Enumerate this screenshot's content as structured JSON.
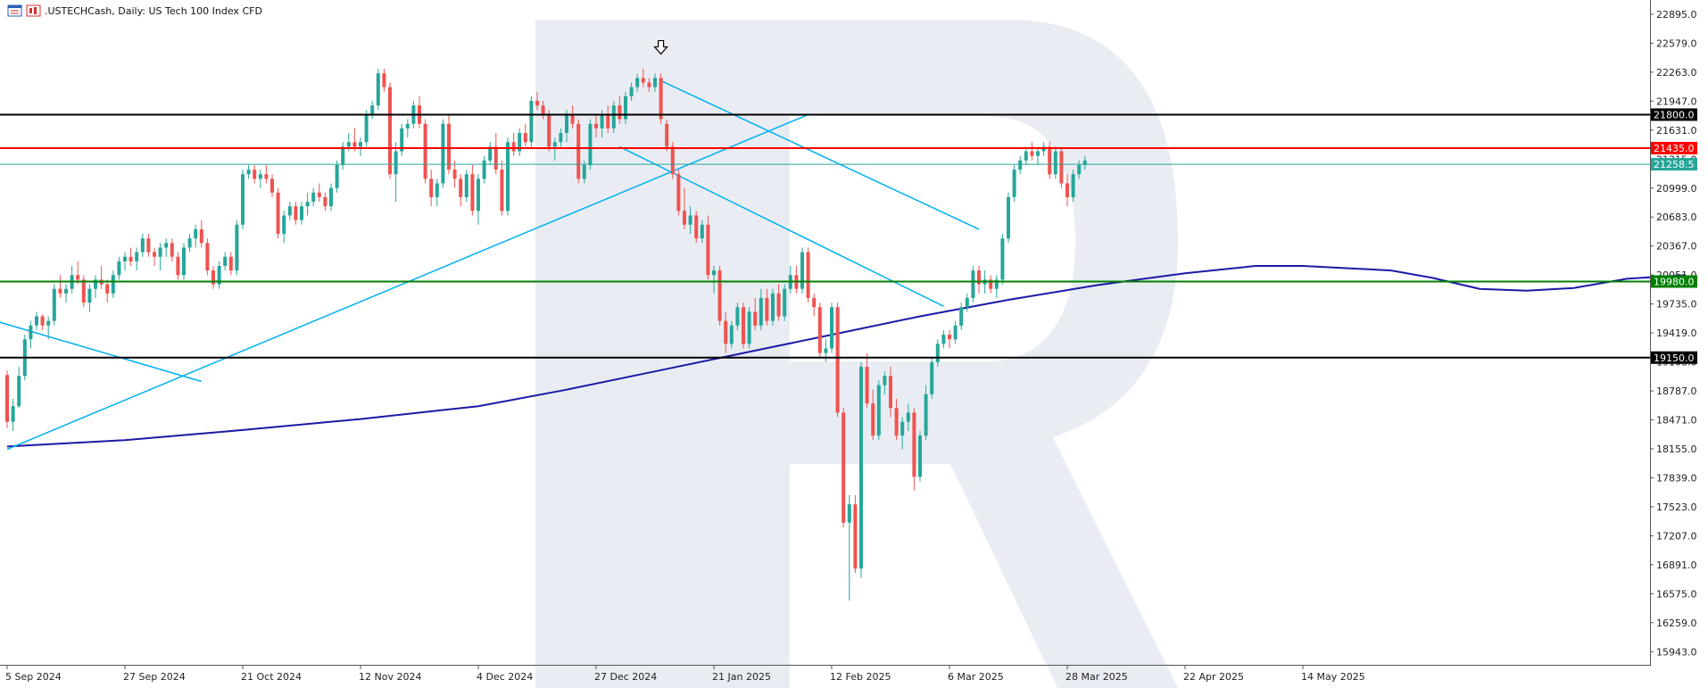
{
  "header": {
    "symbol": ".USTECHCash",
    "timeframe": "Daily",
    "description": "US Tech 100 Index CFD",
    "title": ".USTECHCash, Daily:  US Tech 100 Index CFD"
  },
  "icons": [
    "table-view-icon",
    "symbol-icon"
  ],
  "chart_data": {
    "type": "candlestick",
    "ylim": [
      15800,
      23050
    ],
    "y_ticks": [
      "22895.0",
      "22579.0",
      "22263.0",
      "21947.0",
      "21631.0",
      "21315.0",
      "20999.0",
      "20683.0",
      "20367.0",
      "20051.0",
      "19735.0",
      "19419.0",
      "19103.0",
      "18787.0",
      "18471.0",
      "18155.0",
      "17839.0",
      "17523.0",
      "17207.0",
      "16891.0",
      "16575.0",
      "16259.0",
      "15943.0"
    ],
    "x_labels": [
      "5 Sep 2024",
      "27 Sep 2024",
      "21 Oct 2024",
      "12 Nov 2024",
      "4 Dec 2024",
      "27 Dec 2024",
      "21 Jan 2025",
      "12 Feb 2025",
      "6 Mar 2025",
      "28 Mar 2025",
      "22 Apr 2025",
      "14 May 2025"
    ],
    "horizontal_levels": [
      {
        "value": 21800.0,
        "label": "21800.0",
        "color": "#000000"
      },
      {
        "value": 21435.0,
        "label": "21435.0",
        "color": "#ff0000"
      },
      {
        "value": 21258.5,
        "label": "21258.5",
        "color": "#26a69a"
      },
      {
        "value": 19980.0,
        "label": "19980.0",
        "color": "#008000"
      },
      {
        "value": 19150.0,
        "label": "19150.0",
        "color": "#000000"
      }
    ],
    "moving_average": {
      "color": "#1a1aa6",
      "points": [
        [
          0,
          18180
        ],
        [
          20,
          18250
        ],
        [
          40,
          18360
        ],
        [
          60,
          18480
        ],
        [
          80,
          18620
        ],
        [
          95,
          18800
        ],
        [
          110,
          19000
        ],
        [
          125,
          19200
        ],
        [
          140,
          19400
        ],
        [
          155,
          19600
        ],
        [
          170,
          19780
        ],
        [
          185,
          19940
        ],
        [
          200,
          20070
        ],
        [
          212,
          20150
        ],
        [
          220,
          20150
        ],
        [
          235,
          20100
        ],
        [
          242,
          20020
        ],
        [
          250,
          19900
        ],
        [
          258,
          19880
        ],
        [
          266,
          19910
        ],
        [
          275,
          20010
        ],
        [
          285,
          20050
        ]
      ]
    },
    "trendlines": {
      "color": "#00b0f0",
      "segments": [
        [
          [
            -2,
            19550
          ],
          [
            33,
            18890
          ]
        ],
        [
          [
            0,
            18150
          ],
          [
            136,
            21800
          ]
        ],
        [
          [
            111,
            22170
          ],
          [
            165,
            20550
          ]
        ],
        [
          [
            104,
            21450
          ],
          [
            159,
            19710
          ]
        ]
      ]
    },
    "arrow_marker": {
      "index": 111,
      "value": 22490
    },
    "candles": [
      [
        18960,
        19010,
        18380,
        18450
      ],
      [
        18450,
        18700,
        18350,
        18620
      ],
      [
        18620,
        19050,
        18600,
        18950
      ],
      [
        18950,
        19400,
        18900,
        19350
      ],
      [
        19350,
        19550,
        19250,
        19500
      ],
      [
        19500,
        19650,
        19450,
        19600
      ],
      [
        19600,
        19620,
        19450,
        19500
      ],
      [
        19500,
        19600,
        19350,
        19550
      ],
      [
        19550,
        19950,
        19500,
        19900
      ],
      [
        19900,
        20050,
        19800,
        19850
      ],
      [
        19850,
        19950,
        19750,
        19900
      ],
      [
        19900,
        20150,
        19850,
        20050
      ],
      [
        20050,
        20200,
        19950,
        20000
      ],
      [
        20000,
        20050,
        19700,
        19750
      ],
      [
        19750,
        19950,
        19650,
        19900
      ],
      [
        19900,
        20050,
        19800,
        20000
      ],
      [
        20000,
        20150,
        19900,
        19950
      ],
      [
        19950,
        20000,
        19750,
        19850
      ],
      [
        19850,
        20100,
        19800,
        20050
      ],
      [
        20050,
        20250,
        20000,
        20200
      ],
      [
        20200,
        20300,
        20100,
        20250
      ],
      [
        20250,
        20350,
        20150,
        20200
      ],
      [
        20200,
        20350,
        20100,
        20300
      ],
      [
        20300,
        20500,
        20250,
        20450
      ],
      [
        20450,
        20500,
        20250,
        20300
      ],
      [
        20300,
        20350,
        20150,
        20250
      ],
      [
        20250,
        20400,
        20100,
        20350
      ],
      [
        20350,
        20450,
        20250,
        20400
      ],
      [
        20400,
        20450,
        20200,
        20250
      ],
      [
        20250,
        20300,
        20000,
        20050
      ],
      [
        20050,
        20400,
        20000,
        20350
      ],
      [
        20350,
        20500,
        20300,
        20450
      ],
      [
        20450,
        20600,
        20350,
        20550
      ],
      [
        20550,
        20650,
        20350,
        20400
      ],
      [
        20400,
        20450,
        20050,
        20100
      ],
      [
        20100,
        20150,
        19900,
        19950
      ],
      [
        19950,
        20200,
        19900,
        20150
      ],
      [
        20150,
        20300,
        20100,
        20250
      ],
      [
        20250,
        20300,
        20050,
        20100
      ],
      [
        20100,
        20650,
        20050,
        20600
      ],
      [
        20600,
        21200,
        20550,
        21150
      ],
      [
        21150,
        21250,
        21100,
        21200
      ],
      [
        21200,
        21250,
        21050,
        21100
      ],
      [
        21100,
        21200,
        21000,
        21150
      ],
      [
        21150,
        21250,
        21050,
        21100
      ],
      [
        21100,
        21150,
        20900,
        20950
      ],
      [
        20950,
        21000,
        20450,
        20500
      ],
      [
        20500,
        20750,
        20400,
        20700
      ],
      [
        20700,
        20850,
        20650,
        20800
      ],
      [
        20800,
        20850,
        20600,
        20650
      ],
      [
        20650,
        20850,
        20600,
        20800
      ],
      [
        20800,
        20950,
        20700,
        20850
      ],
      [
        20850,
        21000,
        20800,
        20950
      ],
      [
        20950,
        21050,
        20850,
        20900
      ],
      [
        20900,
        20950,
        20750,
        20800
      ],
      [
        20800,
        21050,
        20750,
        21000
      ],
      [
        21000,
        21300,
        20950,
        21250
      ],
      [
        21250,
        21500,
        21200,
        21450
      ],
      [
        21450,
        21600,
        21400,
        21500
      ],
      [
        21500,
        21650,
        21400,
        21450
      ],
      [
        21450,
        21550,
        21350,
        21500
      ],
      [
        21500,
        21850,
        21450,
        21800
      ],
      [
        21800,
        21950,
        21750,
        21900
      ],
      [
        21900,
        22300,
        21850,
        22250
      ],
      [
        22250,
        22300,
        22050,
        22100
      ],
      [
        22100,
        22150,
        21100,
        21150
      ],
      [
        21150,
        21500,
        20850,
        21400
      ],
      [
        21400,
        21700,
        21350,
        21650
      ],
      [
        21650,
        21750,
        21550,
        21700
      ],
      [
        21700,
        21950,
        21650,
        21900
      ],
      [
        21900,
        22000,
        21650,
        21700
      ],
      [
        21700,
        21750,
        21050,
        21100
      ],
      [
        21100,
        21200,
        20800,
        20900
      ],
      [
        20900,
        21100,
        20800,
        21050
      ],
      [
        21050,
        21750,
        21000,
        21700
      ],
      [
        21700,
        21800,
        21150,
        21200
      ],
      [
        21200,
        21300,
        21000,
        21100
      ],
      [
        21100,
        21150,
        20800,
        20900
      ],
      [
        20900,
        21200,
        20850,
        21150
      ],
      [
        21150,
        21250,
        20700,
        20750
      ],
      [
        20750,
        21150,
        20600,
        21100
      ],
      [
        21100,
        21350,
        21050,
        21300
      ],
      [
        21300,
        21500,
        21250,
        21450
      ],
      [
        21450,
        21600,
        21150,
        21200
      ],
      [
        21200,
        21300,
        20700,
        20750
      ],
      [
        20750,
        21550,
        20700,
        21500
      ],
      [
        21500,
        21600,
        21350,
        21400
      ],
      [
        21400,
        21650,
        21350,
        21600
      ],
      [
        21600,
        21700,
        21450,
        21500
      ],
      [
        21500,
        22000,
        21450,
        21950
      ],
      [
        21950,
        22050,
        21850,
        21900
      ],
      [
        21900,
        21950,
        21750,
        21800
      ],
      [
        21800,
        21850,
        21400,
        21450
      ],
      [
        21450,
        21550,
        21300,
        21500
      ],
      [
        21500,
        21650,
        21450,
        21600
      ],
      [
        21600,
        21850,
        21500,
        21800
      ],
      [
        21800,
        21900,
        21650,
        21700
      ],
      [
        21700,
        21750,
        21050,
        21100
      ],
      [
        21100,
        21300,
        21050,
        21250
      ],
      [
        21250,
        21750,
        21200,
        21700
      ],
      [
        21700,
        21800,
        21550,
        21650
      ],
      [
        21650,
        21850,
        21550,
        21800
      ],
      [
        21800,
        21900,
        21600,
        21650
      ],
      [
        21650,
        21950,
        21600,
        21900
      ],
      [
        21900,
        22000,
        21700,
        21750
      ],
      [
        21750,
        22050,
        21700,
        22000
      ],
      [
        22000,
        22150,
        21950,
        22100
      ],
      [
        22100,
        22250,
        22050,
        22200
      ],
      [
        22200,
        22300,
        22100,
        22150
      ],
      [
        22150,
        22200,
        22050,
        22100
      ],
      [
        22100,
        22250,
        22050,
        22200
      ],
      [
        22200,
        22250,
        21700,
        21750
      ],
      [
        21700,
        21750,
        21400,
        21450
      ],
      [
        21450,
        21500,
        21100,
        21150
      ],
      [
        21150,
        21200,
        20700,
        20750
      ],
      [
        20750,
        21000,
        20550,
        20600
      ],
      [
        20600,
        20800,
        20500,
        20700
      ],
      [
        20700,
        20750,
        20400,
        20450
      ],
      [
        20450,
        20650,
        20400,
        20600
      ],
      [
        20600,
        20700,
        20000,
        20050
      ],
      [
        20050,
        20150,
        19850,
        20100
      ],
      [
        20100,
        20150,
        19500,
        19550
      ],
      [
        19550,
        19650,
        19200,
        19300
      ],
      [
        19300,
        19550,
        19250,
        19500
      ],
      [
        19500,
        19750,
        19450,
        19700
      ],
      [
        19700,
        19750,
        19250,
        19300
      ],
      [
        19300,
        19700,
        19250,
        19650
      ],
      [
        19650,
        19800,
        19450,
        19500
      ],
      [
        19500,
        19900,
        19450,
        19800
      ],
      [
        19800,
        19900,
        19500,
        19550
      ],
      [
        19550,
        19900,
        19500,
        19850
      ],
      [
        19850,
        19950,
        19550,
        19600
      ],
      [
        19600,
        19950,
        19550,
        19900
      ],
      [
        19900,
        20150,
        19850,
        20050
      ],
      [
        20050,
        20150,
        19850,
        19900
      ],
      [
        19900,
        20350,
        19850,
        20300
      ],
      [
        20300,
        20350,
        19750,
        19800
      ],
      [
        19800,
        19850,
        19600,
        19700
      ],
      [
        19700,
        19750,
        19150,
        19200
      ],
      [
        19200,
        19350,
        19100,
        19250
      ],
      [
        19250,
        19750,
        19200,
        19700
      ],
      [
        19700,
        19750,
        18500,
        18550
      ],
      [
        18550,
        18600,
        17300,
        17350
      ],
      [
        17350,
        17650,
        16500,
        17550
      ],
      [
        17550,
        17650,
        16800,
        16850
      ],
      [
        16850,
        19100,
        16750,
        19050
      ],
      [
        19050,
        19200,
        18600,
        18650
      ],
      [
        18650,
        18800,
        18250,
        18300
      ],
      [
        18300,
        18900,
        18250,
        18850
      ],
      [
        18850,
        19000,
        18750,
        18950
      ],
      [
        18950,
        19050,
        18500,
        18600
      ],
      [
        18600,
        18700,
        18250,
        18300
      ],
      [
        18300,
        18500,
        18150,
        18450
      ],
      [
        18450,
        18650,
        18350,
        18550
      ],
      [
        18550,
        18600,
        17700,
        17850
      ],
      [
        17850,
        18350,
        17800,
        18300
      ],
      [
        18300,
        18850,
        18250,
        18750
      ],
      [
        18750,
        19150,
        18700,
        19100
      ],
      [
        19100,
        19350,
        19050,
        19300
      ],
      [
        19300,
        19450,
        19250,
        19400
      ],
      [
        19400,
        19450,
        19250,
        19350
      ],
      [
        19350,
        19550,
        19300,
        19500
      ],
      [
        19500,
        19750,
        19450,
        19700
      ],
      [
        19700,
        19850,
        19650,
        19800
      ],
      [
        19800,
        20150,
        19750,
        20100
      ],
      [
        20100,
        20150,
        19850,
        19950
      ],
      [
        19950,
        20100,
        19850,
        20000
      ],
      [
        20000,
        20050,
        19850,
        19900
      ],
      [
        19900,
        20050,
        19800,
        20000
      ],
      [
        20000,
        20500,
        19950,
        20450
      ],
      [
        20450,
        20950,
        20400,
        20900
      ],
      [
        20900,
        21250,
        20850,
        21200
      ],
      [
        21200,
        21350,
        21150,
        21300
      ],
      [
        21300,
        21450,
        21250,
        21400
      ],
      [
        21400,
        21500,
        21300,
        21350
      ],
      [
        21350,
        21450,
        21250,
        21400
      ],
      [
        21400,
        21500,
        21350,
        21450
      ],
      [
        21450,
        21500,
        21100,
        21150
      ],
      [
        21150,
        21450,
        21100,
        21400
      ],
      [
        21400,
        21450,
        21000,
        21050
      ],
      [
        21050,
        21150,
        20800,
        20900
      ],
      [
        20900,
        21200,
        20850,
        21150
      ],
      [
        21150,
        21300,
        21100,
        21250
      ],
      [
        21250,
        21350,
        21200,
        21300
      ]
    ]
  },
  "watermark": "R"
}
